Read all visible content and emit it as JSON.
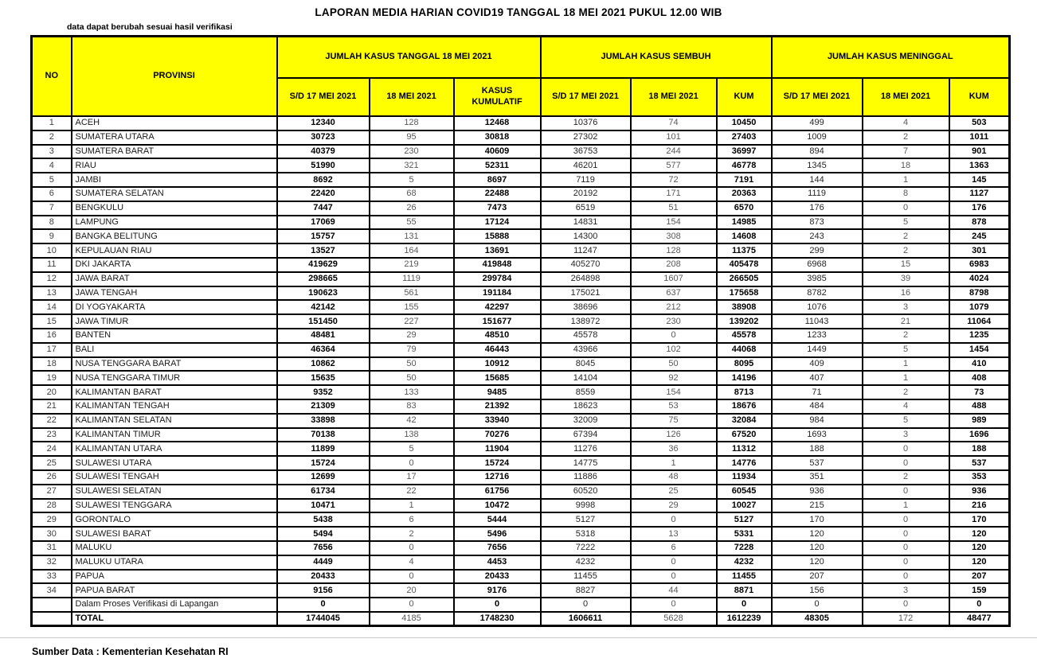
{
  "title": "LAPORAN MEDIA HARIAN COVID19 TANGGAL 18 MEI 2021 PUKUL 12.00 WIB",
  "disclaimer": "data dapat berubah sesuai hasil verifikasi",
  "footer": {
    "source_label": "Sumber Data : Kementerian Kesehatan RI"
  },
  "colors": {
    "header_bg": "#FFFF00",
    "border": "#000000",
    "bold_text": "#000000",
    "regular_text": "#262626",
    "muted_text": "#595959"
  },
  "table": {
    "header": {
      "no": "NO",
      "provinsi": "PROVINSI",
      "groups": [
        {
          "label": "JUMLAH KASUS TANGGAL 18 MEI 2021",
          "sub": [
            "S/D 17 MEI 2021",
            "18 MEI 2021",
            "KASUS KUMULATIF"
          ]
        },
        {
          "label": "JUMLAH KASUS SEMBUH",
          "sub": [
            "S/D 17 MEI 2021",
            "18 MEI 2021",
            "KUM"
          ]
        },
        {
          "label": "JUMLAH KASUS MENINGGAL",
          "sub": [
            "S/D 17 MEI 2021",
            "18 MEI 2021",
            "KUM"
          ]
        }
      ]
    },
    "rows": [
      [
        1,
        "ACEH",
        12340,
        128,
        12468,
        10376,
        74,
        10450,
        499,
        4,
        503
      ],
      [
        2,
        "SUMATERA UTARA",
        30723,
        95,
        30818,
        27302,
        101,
        27403,
        1009,
        2,
        1011
      ],
      [
        3,
        "SUMATERA BARAT",
        40379,
        230,
        40609,
        36753,
        244,
        36997,
        894,
        7,
        901
      ],
      [
        4,
        "RIAU",
        51990,
        321,
        52311,
        46201,
        577,
        46778,
        1345,
        18,
        1363
      ],
      [
        5,
        "JAMBI",
        8692,
        5,
        8697,
        7119,
        72,
        7191,
        144,
        1,
        145
      ],
      [
        6,
        "SUMATERA SELATAN",
        22420,
        68,
        22488,
        20192,
        171,
        20363,
        1119,
        8,
        1127
      ],
      [
        7,
        "BENGKULU",
        7447,
        26,
        7473,
        6519,
        51,
        6570,
        176,
        0,
        176
      ],
      [
        8,
        "LAMPUNG",
        17069,
        55,
        17124,
        14831,
        154,
        14985,
        873,
        5,
        878
      ],
      [
        9,
        "BANGKA BELITUNG",
        15757,
        131,
        15888,
        14300,
        308,
        14608,
        243,
        2,
        245
      ],
      [
        10,
        "KEPULAUAN RIAU",
        13527,
        164,
        13691,
        11247,
        128,
        11375,
        299,
        2,
        301
      ],
      [
        11,
        "DKI JAKARTA",
        419629,
        219,
        419848,
        405270,
        208,
        405478,
        6968,
        15,
        6983
      ],
      [
        12,
        "JAWA BARAT",
        298665,
        1119,
        299784,
        264898,
        1607,
        266505,
        3985,
        39,
        4024
      ],
      [
        13,
        "JAWA TENGAH",
        190623,
        561,
        191184,
        175021,
        637,
        175658,
        8782,
        16,
        8798
      ],
      [
        14,
        "DI YOGYAKARTA",
        42142,
        155,
        42297,
        38696,
        212,
        38908,
        1076,
        3,
        1079
      ],
      [
        15,
        "JAWA TIMUR",
        151450,
        227,
        151677,
        138972,
        230,
        139202,
        11043,
        21,
        11064
      ],
      [
        16,
        "BANTEN",
        48481,
        29,
        48510,
        45578,
        0,
        45578,
        1233,
        2,
        1235
      ],
      [
        17,
        "BALI",
        46364,
        79,
        46443,
        43966,
        102,
        44068,
        1449,
        5,
        1454
      ],
      [
        18,
        "NUSA TENGGARA BARAT",
        10862,
        50,
        10912,
        8045,
        50,
        8095,
        409,
        1,
        410
      ],
      [
        19,
        "NUSA TENGGARA TIMUR",
        15635,
        50,
        15685,
        14104,
        92,
        14196,
        407,
        1,
        408
      ],
      [
        20,
        "KALIMANTAN BARAT",
        9352,
        133,
        9485,
        8559,
        154,
        8713,
        71,
        2,
        73
      ],
      [
        21,
        "KALIMANTAN TENGAH",
        21309,
        83,
        21392,
        18623,
        53,
        18676,
        484,
        4,
        488
      ],
      [
        22,
        "KALIMANTAN SELATAN",
        33898,
        42,
        33940,
        32009,
        75,
        32084,
        984,
        5,
        989
      ],
      [
        23,
        "KALIMANTAN TIMUR",
        70138,
        138,
        70276,
        67394,
        126,
        67520,
        1693,
        3,
        1696
      ],
      [
        24,
        "KALIMANTAN UTARA",
        11899,
        5,
        11904,
        11276,
        36,
        11312,
        188,
        0,
        188
      ],
      [
        25,
        "SULAWESI UTARA",
        15724,
        0,
        15724,
        14775,
        1,
        14776,
        537,
        0,
        537
      ],
      [
        26,
        "SULAWESI TENGAH",
        12699,
        17,
        12716,
        11886,
        48,
        11934,
        351,
        2,
        353
      ],
      [
        27,
        "SULAWESI SELATAN",
        61734,
        22,
        61756,
        60520,
        25,
        60545,
        936,
        0,
        936
      ],
      [
        28,
        "SULAWESI TENGGARA",
        10471,
        1,
        10472,
        9998,
        29,
        10027,
        215,
        1,
        216
      ],
      [
        29,
        "GORONTALO",
        5438,
        6,
        5444,
        5127,
        0,
        5127,
        170,
        0,
        170
      ],
      [
        30,
        "SULAWESI BARAT",
        5494,
        2,
        5496,
        5318,
        13,
        5331,
        120,
        0,
        120
      ],
      [
        31,
        "MALUKU",
        7656,
        0,
        7656,
        7222,
        6,
        7228,
        120,
        0,
        120
      ],
      [
        32,
        "MALUKU UTARA",
        4449,
        4,
        4453,
        4232,
        0,
        4232,
        120,
        0,
        120
      ],
      [
        33,
        "PAPUA",
        20433,
        0,
        20433,
        11455,
        0,
        11455,
        207,
        0,
        207
      ],
      [
        34,
        "PAPUA BARAT",
        9156,
        20,
        9176,
        8827,
        44,
        8871,
        156,
        3,
        159
      ],
      [
        "",
        "Dalam Proses Verifikasi di Lapangan",
        0,
        0,
        0,
        0,
        0,
        0,
        0,
        0,
        0
      ]
    ],
    "total": {
      "label": "TOTAL",
      "values": [
        1744045,
        4185,
        1748230,
        1606611,
        5628,
        1612239,
        48305,
        172,
        48477
      ]
    }
  }
}
